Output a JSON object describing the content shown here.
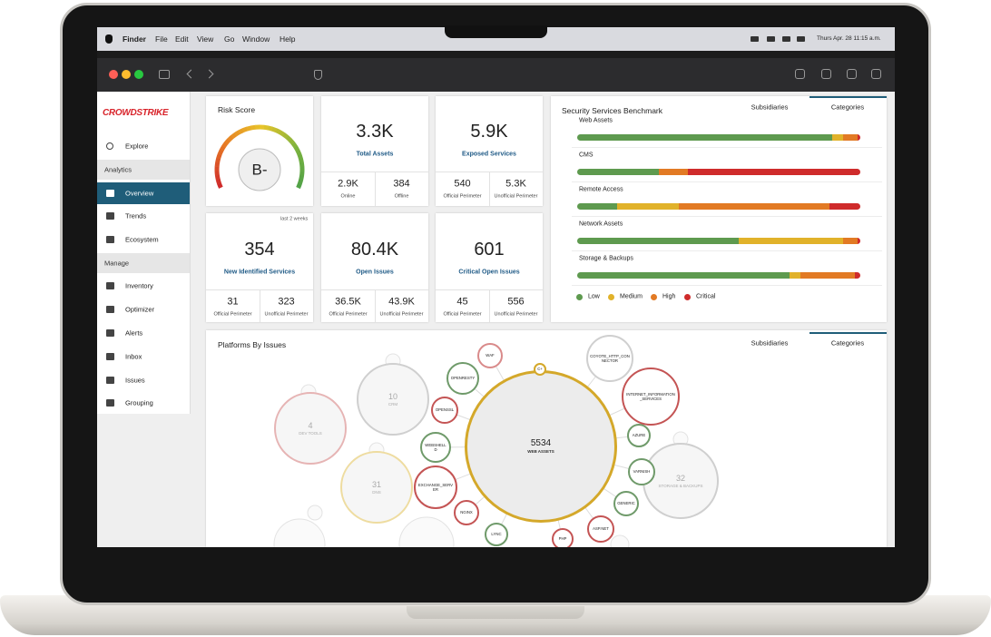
{
  "menubar": {
    "items": [
      "Finder",
      "File",
      "Edit",
      "View",
      "Go",
      "Window",
      "Help"
    ],
    "clock": "Thurs Apr. 28 11:15 a.m."
  },
  "sidebar": {
    "logo": "CROWDSTRIKE",
    "explore": "Explore",
    "sections": [
      {
        "title": "Analytics",
        "items": [
          "Overview",
          "Trends",
          "Ecosystem"
        ]
      },
      {
        "title": "Manage",
        "items": [
          "Inventory",
          "Optimizer",
          "Alerts",
          "Inbox",
          "Issues",
          "Grouping"
        ]
      }
    ],
    "active": {
      "section": 0,
      "item": 0
    }
  },
  "risk_score": {
    "title": "Risk Score",
    "grade": "B-"
  },
  "cards": [
    {
      "value": "3.3K",
      "label": "Total Assets",
      "sub": [
        {
          "value": "2.9K",
          "label": "Online"
        },
        {
          "value": "384",
          "label": "Offline"
        }
      ]
    },
    {
      "value": "5.9K",
      "label": "Exposed Services",
      "sub": [
        {
          "value": "540",
          "label": "Official Perimeter"
        },
        {
          "value": "5.3K",
          "label": "Unofficial Perimeter"
        }
      ]
    },
    {
      "value": "354",
      "label": "New Identified Services",
      "note": "last 2 weeks",
      "sub": [
        {
          "value": "31",
          "label": "Official Perimeter"
        },
        {
          "value": "323",
          "label": "Unofficial Perimeter"
        }
      ]
    },
    {
      "value": "80.4K",
      "label": "Open Issues",
      "sub": [
        {
          "value": "36.5K",
          "label": "Official Perimeter"
        },
        {
          "value": "43.9K",
          "label": "Unofficial Perimeter"
        }
      ]
    },
    {
      "value": "601",
      "label": "Critical Open Issues",
      "sub": [
        {
          "value": "45",
          "label": "Official Perimeter"
        },
        {
          "value": "556",
          "label": "Unofficial Perimeter"
        }
      ]
    }
  ],
  "benchmark": {
    "title": "Security Services Benchmark",
    "tabs": [
      "Subsidiaries",
      "Categories"
    ],
    "active_tab": 1,
    "rows": [
      {
        "name": "Web Assets",
        "segments": [
          90,
          4,
          5,
          1
        ]
      },
      {
        "name": "CMS",
        "segments": [
          29,
          0,
          10,
          61
        ]
      },
      {
        "name": "Remote Access",
        "segments": [
          14,
          22,
          53,
          11
        ]
      },
      {
        "name": "Network Assets",
        "segments": [
          57,
          37,
          5,
          1
        ]
      },
      {
        "name": "Storage & Backups",
        "segments": [
          75,
          4,
          19,
          2
        ]
      }
    ],
    "legend": [
      {
        "name": "Low",
        "color": "#5e9a4f"
      },
      {
        "name": "Medium",
        "color": "#e1b22a"
      },
      {
        "name": "High",
        "color": "#e27a24"
      },
      {
        "name": "Critical",
        "color": "#cf2b2b"
      }
    ]
  },
  "platforms": {
    "title": "Platforms By Issues",
    "tabs": [
      "Subsidiaries",
      "Categories"
    ],
    "active_tab": 1,
    "bubbles": [
      {
        "value": "5534",
        "label": "WEB ASSETS"
      },
      {
        "value": "10",
        "label": "CRM"
      },
      {
        "value": "4",
        "label": "DEV TOOLS"
      },
      {
        "value": "31",
        "label": "DNS"
      },
      {
        "value": "32",
        "label": "STORAGE & BACKUPS"
      },
      {
        "label": "WAF"
      },
      {
        "label": "OPENRESTY"
      },
      {
        "label": "OPENSSL"
      },
      {
        "label": "WEBSHELLD"
      },
      {
        "label": "EXCHANGE_SERVER"
      },
      {
        "label": "NGINX"
      },
      {
        "label": "LYNC"
      },
      {
        "label": "PHP"
      },
      {
        "label": "ASP.NET"
      },
      {
        "label": "GENERIC"
      },
      {
        "label": "VARNISH"
      },
      {
        "label": "AZURE"
      },
      {
        "label": "INTERNET_INFORMATION_SERVICES"
      },
      {
        "label": "COYOTE_HTTP_CONNECTOR"
      },
      {
        "label": "C+"
      }
    ]
  }
}
